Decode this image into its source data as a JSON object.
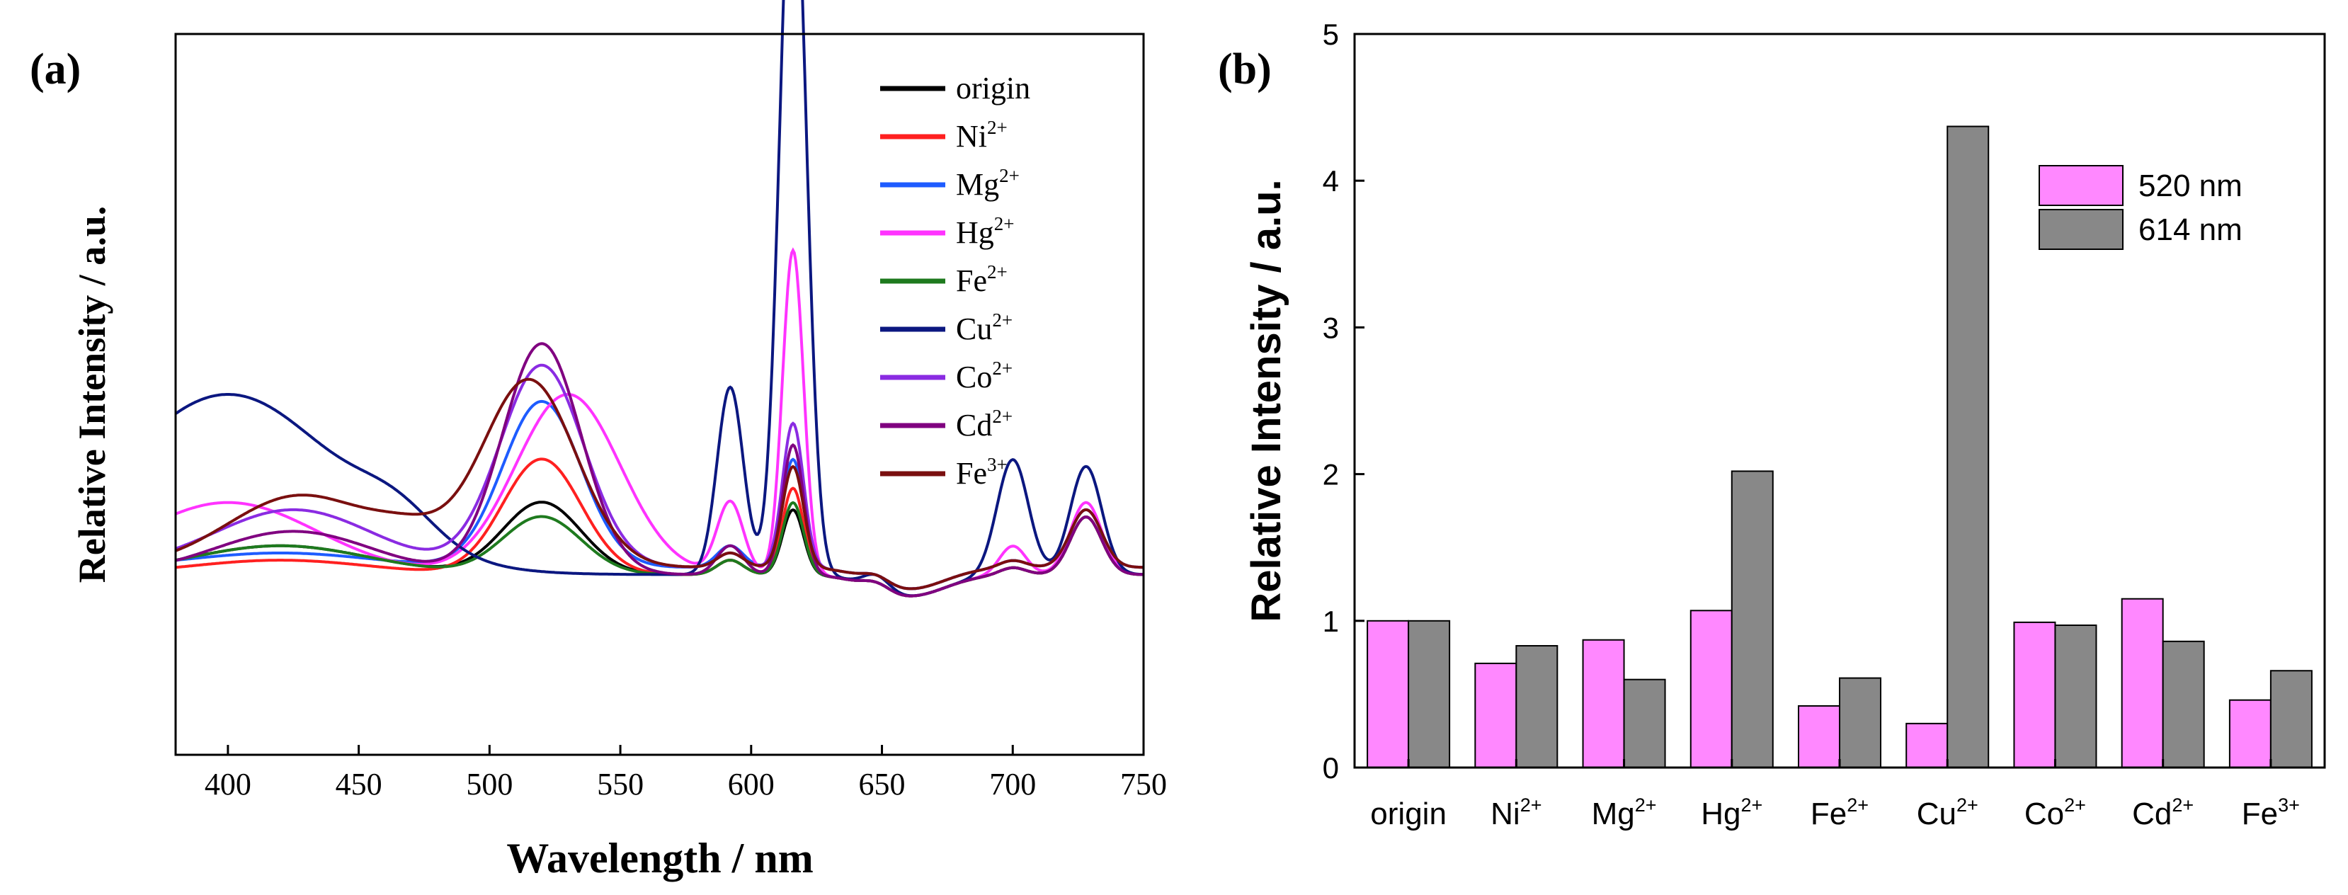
{
  "chart_data": [
    {
      "panel_label": "(a)",
      "type": "line",
      "title": "",
      "xlabel": "Wavelength / nm",
      "ylabel": "Relative Intensity / a.u.",
      "xlim": [
        380,
        750
      ],
      "ylim": [
        0,
        1
      ],
      "xticks": [
        400,
        450,
        500,
        550,
        600,
        650,
        700,
        750
      ],
      "y_tick_labels_shown": false,
      "legend_position": "top-right",
      "peaks_nm": [
        420,
        520,
        592,
        616,
        648,
        700,
        728
      ],
      "series": [
        {
          "name": "origin",
          "sup": "",
          "color": "#000000",
          "baseline": 0.25,
          "peaks": [
            [
              0.04,
              420,
              34
            ],
            [
              0.1,
              520,
              15
            ],
            [
              0.02,
              592,
              5
            ],
            [
              0.09,
              616,
              4
            ],
            [
              0.01,
              648,
              5
            ],
            [
              0.01,
              700,
              5
            ],
            [
              0.08,
              728,
              6
            ]
          ]
        },
        {
          "name": "Ni",
          "sup": "2+",
          "color": "#ff2020",
          "baseline": 0.25,
          "peaks": [
            [
              0.02,
              420,
              34
            ],
            [
              0.16,
              520,
              15
            ],
            [
              0.02,
              592,
              5
            ],
            [
              0.12,
              616,
              4
            ],
            [
              0.01,
              648,
              5
            ],
            [
              0.01,
              700,
              5
            ],
            [
              0.08,
              728,
              6
            ]
          ]
        },
        {
          "name": "Mg",
          "sup": "2+",
          "color": "#1e5cff",
          "baseline": 0.26,
          "peaks": [
            [
              0.02,
              420,
              34
            ],
            [
              0.23,
              520,
              15
            ],
            [
              0.03,
              592,
              5
            ],
            [
              0.15,
              616,
              4
            ],
            [
              0.01,
              648,
              5
            ],
            [
              0.01,
              700,
              5
            ],
            [
              0.08,
              728,
              6
            ]
          ]
        },
        {
          "name": "Hg",
          "sup": "2+",
          "color": "#ff33ff",
          "baseline": 0.25,
          "peaks": [
            [
              0.1,
              400,
              34
            ],
            [
              0.25,
              530,
              20
            ],
            [
              0.1,
              592,
              5
            ],
            [
              0.45,
              616,
              4
            ],
            [
              0.01,
              648,
              5
            ],
            [
              0.04,
              700,
              5
            ],
            [
              0.1,
              728,
              6
            ]
          ]
        },
        {
          "name": "Fe",
          "sup": "2+",
          "color": "#1e7a1e",
          "baseline": 0.25,
          "peaks": [
            [
              0.04,
              420,
              34
            ],
            [
              0.08,
              520,
              15
            ],
            [
              0.02,
              592,
              5
            ],
            [
              0.1,
              616,
              4
            ],
            [
              0.01,
              648,
              5
            ],
            [
              0.01,
              700,
              5
            ],
            [
              0.08,
              728,
              6
            ]
          ]
        },
        {
          "name": "Cu",
          "sup": "2+",
          "color": "#0b1780",
          "baseline": 0.25,
          "peaks": [
            [
              0.25,
              400,
              42
            ],
            [
              0.04,
              465,
              15
            ],
            [
              0.26,
              592,
              5
            ],
            [
              1.04,
              616,
              5
            ],
            [
              0.02,
              648,
              5
            ],
            [
              0.16,
              700,
              6
            ],
            [
              0.15,
              728,
              6
            ]
          ]
        },
        {
          "name": "Co",
          "sup": "2+",
          "color": "#8a2be2",
          "baseline": 0.26,
          "peaks": [
            [
              0.08,
              425,
              30
            ],
            [
              0.28,
              520,
              16
            ],
            [
              0.02,
              592,
              5
            ],
            [
              0.2,
              616,
              4
            ],
            [
              0.01,
              648,
              5
            ],
            [
              0.01,
              700,
              5
            ],
            [
              0.08,
              728,
              6
            ]
          ]
        },
        {
          "name": "Cd",
          "sup": "2+",
          "color": "#800080",
          "baseline": 0.25,
          "peaks": [
            [
              0.06,
              425,
              30
            ],
            [
              0.32,
              520,
              15
            ],
            [
              0.04,
              592,
              5
            ],
            [
              0.18,
              616,
              4
            ],
            [
              0.01,
              648,
              5
            ],
            [
              0.01,
              700,
              5
            ],
            [
              0.08,
              728,
              6
            ]
          ]
        },
        {
          "name": "Fe",
          "sup": "3+",
          "color": "#7a0f0f",
          "baseline": 0.26,
          "peaks": [
            [
              0.1,
              428,
              28
            ],
            [
              0.03,
              470,
              14
            ],
            [
              0.26,
              515,
              18
            ],
            [
              0.02,
              592,
              5
            ],
            [
              0.14,
              616,
              4
            ],
            [
              0.01,
              648,
              5
            ],
            [
              0.01,
              700,
              5
            ],
            [
              0.08,
              728,
              6
            ]
          ]
        }
      ]
    },
    {
      "panel_label": "(b)",
      "type": "bar",
      "title": "",
      "xlabel": "",
      "ylabel": "Relative Intensity / a.u.",
      "ylim": [
        0,
        5
      ],
      "yticks": [
        0,
        1,
        2,
        3,
        4,
        5
      ],
      "legend_position": "top-right",
      "categories": [
        {
          "name": "origin",
          "sup": ""
        },
        {
          "name": "Ni",
          "sup": "2+"
        },
        {
          "name": "Mg",
          "sup": "2+"
        },
        {
          "name": "Hg",
          "sup": "2+"
        },
        {
          "name": "Fe",
          "sup": "2+"
        },
        {
          "name": "Cu",
          "sup": "2+"
        },
        {
          "name": "Co",
          "sup": "2+"
        },
        {
          "name": "Cd",
          "sup": "2+"
        },
        {
          "name": "Fe",
          "sup": "3+"
        }
      ],
      "series": [
        {
          "name": "520 nm",
          "color": "#ff88ff",
          "values": [
            1.0,
            0.71,
            0.87,
            1.07,
            0.42,
            0.3,
            0.99,
            1.15,
            0.46
          ]
        },
        {
          "name": "614 nm",
          "color": "#888888",
          "values": [
            1.0,
            0.83,
            0.6,
            2.02,
            0.61,
            4.37,
            0.97,
            0.86,
            0.66
          ]
        }
      ]
    }
  ]
}
